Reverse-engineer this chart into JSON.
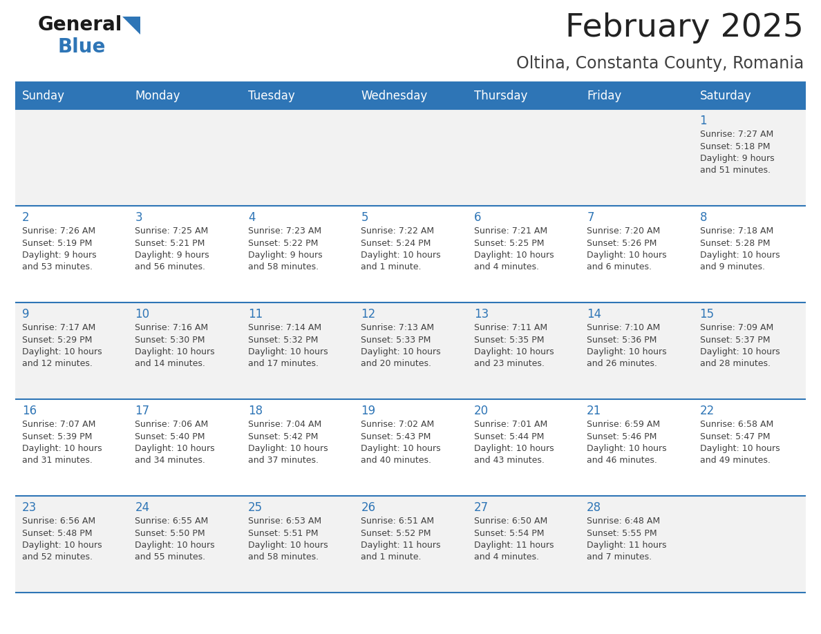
{
  "title": "February 2025",
  "subtitle": "Oltina, Constanta County, Romania",
  "days_of_week": [
    "Sunday",
    "Monday",
    "Tuesday",
    "Wednesday",
    "Thursday",
    "Friday",
    "Saturday"
  ],
  "header_bg": "#2E75B6",
  "header_text": "#FFFFFF",
  "cell_bg_odd": "#F2F2F2",
  "cell_bg_even": "#FFFFFF",
  "border_color": "#2E75B6",
  "text_color": "#404040",
  "day_num_color": "#2E75B6",
  "title_color": "#222222",
  "subtitle_color": "#404040",
  "logo_general_color": "#1a1a1a",
  "logo_blue_color": "#2E75B6",
  "logo_triangle_color": "#2E75B6",
  "calendar": [
    [
      {
        "day": null,
        "info": null
      },
      {
        "day": null,
        "info": null
      },
      {
        "day": null,
        "info": null
      },
      {
        "day": null,
        "info": null
      },
      {
        "day": null,
        "info": null
      },
      {
        "day": null,
        "info": null
      },
      {
        "day": 1,
        "info": "Sunrise: 7:27 AM\nSunset: 5:18 PM\nDaylight: 9 hours\nand 51 minutes."
      }
    ],
    [
      {
        "day": 2,
        "info": "Sunrise: 7:26 AM\nSunset: 5:19 PM\nDaylight: 9 hours\nand 53 minutes."
      },
      {
        "day": 3,
        "info": "Sunrise: 7:25 AM\nSunset: 5:21 PM\nDaylight: 9 hours\nand 56 minutes."
      },
      {
        "day": 4,
        "info": "Sunrise: 7:23 AM\nSunset: 5:22 PM\nDaylight: 9 hours\nand 58 minutes."
      },
      {
        "day": 5,
        "info": "Sunrise: 7:22 AM\nSunset: 5:24 PM\nDaylight: 10 hours\nand 1 minute."
      },
      {
        "day": 6,
        "info": "Sunrise: 7:21 AM\nSunset: 5:25 PM\nDaylight: 10 hours\nand 4 minutes."
      },
      {
        "day": 7,
        "info": "Sunrise: 7:20 AM\nSunset: 5:26 PM\nDaylight: 10 hours\nand 6 minutes."
      },
      {
        "day": 8,
        "info": "Sunrise: 7:18 AM\nSunset: 5:28 PM\nDaylight: 10 hours\nand 9 minutes."
      }
    ],
    [
      {
        "day": 9,
        "info": "Sunrise: 7:17 AM\nSunset: 5:29 PM\nDaylight: 10 hours\nand 12 minutes."
      },
      {
        "day": 10,
        "info": "Sunrise: 7:16 AM\nSunset: 5:30 PM\nDaylight: 10 hours\nand 14 minutes."
      },
      {
        "day": 11,
        "info": "Sunrise: 7:14 AM\nSunset: 5:32 PM\nDaylight: 10 hours\nand 17 minutes."
      },
      {
        "day": 12,
        "info": "Sunrise: 7:13 AM\nSunset: 5:33 PM\nDaylight: 10 hours\nand 20 minutes."
      },
      {
        "day": 13,
        "info": "Sunrise: 7:11 AM\nSunset: 5:35 PM\nDaylight: 10 hours\nand 23 minutes."
      },
      {
        "day": 14,
        "info": "Sunrise: 7:10 AM\nSunset: 5:36 PM\nDaylight: 10 hours\nand 26 minutes."
      },
      {
        "day": 15,
        "info": "Sunrise: 7:09 AM\nSunset: 5:37 PM\nDaylight: 10 hours\nand 28 minutes."
      }
    ],
    [
      {
        "day": 16,
        "info": "Sunrise: 7:07 AM\nSunset: 5:39 PM\nDaylight: 10 hours\nand 31 minutes."
      },
      {
        "day": 17,
        "info": "Sunrise: 7:06 AM\nSunset: 5:40 PM\nDaylight: 10 hours\nand 34 minutes."
      },
      {
        "day": 18,
        "info": "Sunrise: 7:04 AM\nSunset: 5:42 PM\nDaylight: 10 hours\nand 37 minutes."
      },
      {
        "day": 19,
        "info": "Sunrise: 7:02 AM\nSunset: 5:43 PM\nDaylight: 10 hours\nand 40 minutes."
      },
      {
        "day": 20,
        "info": "Sunrise: 7:01 AM\nSunset: 5:44 PM\nDaylight: 10 hours\nand 43 minutes."
      },
      {
        "day": 21,
        "info": "Sunrise: 6:59 AM\nSunset: 5:46 PM\nDaylight: 10 hours\nand 46 minutes."
      },
      {
        "day": 22,
        "info": "Sunrise: 6:58 AM\nSunset: 5:47 PM\nDaylight: 10 hours\nand 49 minutes."
      }
    ],
    [
      {
        "day": 23,
        "info": "Sunrise: 6:56 AM\nSunset: 5:48 PM\nDaylight: 10 hours\nand 52 minutes."
      },
      {
        "day": 24,
        "info": "Sunrise: 6:55 AM\nSunset: 5:50 PM\nDaylight: 10 hours\nand 55 minutes."
      },
      {
        "day": 25,
        "info": "Sunrise: 6:53 AM\nSunset: 5:51 PM\nDaylight: 10 hours\nand 58 minutes."
      },
      {
        "day": 26,
        "info": "Sunrise: 6:51 AM\nSunset: 5:52 PM\nDaylight: 11 hours\nand 1 minute."
      },
      {
        "day": 27,
        "info": "Sunrise: 6:50 AM\nSunset: 5:54 PM\nDaylight: 11 hours\nand 4 minutes."
      },
      {
        "day": 28,
        "info": "Sunrise: 6:48 AM\nSunset: 5:55 PM\nDaylight: 11 hours\nand 7 minutes."
      },
      {
        "day": null,
        "info": null
      }
    ]
  ]
}
